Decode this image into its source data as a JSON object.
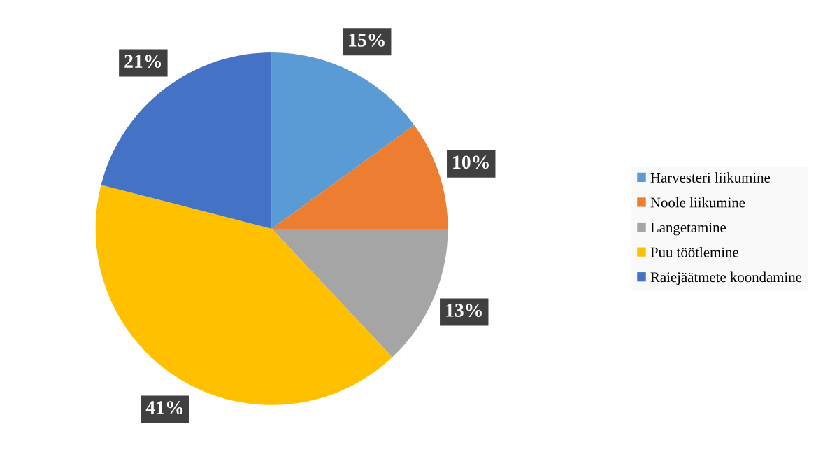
{
  "chart_data": {
    "type": "pie",
    "categories": [
      "Harvesteri liikumine",
      "Noole liikumine",
      "Langetamine",
      "Puu töötlemine",
      "Raiejäätmete koondamine"
    ],
    "values": [
      15,
      10,
      13,
      41,
      21
    ],
    "value_labels": [
      "15%",
      "10%",
      "13%",
      "41%",
      "21%"
    ],
    "colors": [
      "#5b9bd5",
      "#ed7d31",
      "#a5a5a5",
      "#ffc000",
      "#4472c4"
    ],
    "legend": "right"
  }
}
